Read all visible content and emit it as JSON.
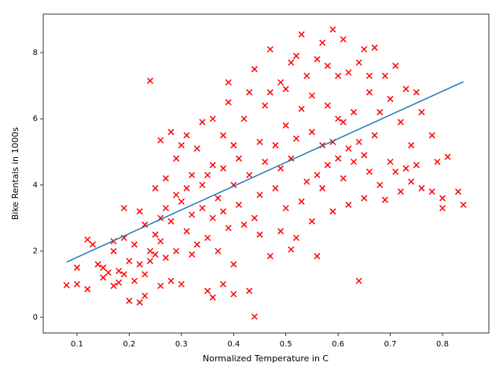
{
  "chart_data": {
    "type": "scatter",
    "xlabel": "Normalized Temperature in C",
    "ylabel": "Bike Rentals in 1000s",
    "xlim": [
      0.0353,
      0.8888
    ],
    "ylim": [
      -0.475,
      9.163
    ],
    "xticks": [
      0.1,
      0.2,
      0.3,
      0.4,
      0.5,
      0.6,
      0.7,
      0.8
    ],
    "yticks": [
      0,
      2,
      4,
      6,
      8
    ],
    "grid": false,
    "series": [
      {
        "type": "scatter",
        "marker": "x",
        "color": "#ff0000",
        "x": [
          0.08,
          0.1,
          0.1,
          0.12,
          0.12,
          0.13,
          0.14,
          0.15,
          0.15,
          0.16,
          0.17,
          0.17,
          0.17,
          0.18,
          0.18,
          0.19,
          0.19,
          0.19,
          0.2,
          0.2,
          0.21,
          0.21,
          0.22,
          0.22,
          0.22,
          0.23,
          0.23,
          0.23,
          0.24,
          0.24,
          0.24,
          0.25,
          0.25,
          0.25,
          0.26,
          0.26,
          0.26,
          0.26,
          0.27,
          0.27,
          0.27,
          0.28,
          0.28,
          0.28,
          0.29,
          0.29,
          0.29,
          0.3,
          0.3,
          0.3,
          0.31,
          0.31,
          0.31,
          0.32,
          0.32,
          0.32,
          0.33,
          0.33,
          0.34,
          0.34,
          0.34,
          0.35,
          0.35,
          0.35,
          0.36,
          0.36,
          0.36,
          0.36,
          0.37,
          0.37,
          0.38,
          0.38,
          0.38,
          0.38,
          0.39,
          0.39,
          0.39,
          0.4,
          0.4,
          0.4,
          0.4,
          0.41,
          0.41,
          0.42,
          0.42,
          0.43,
          0.43,
          0.43,
          0.44,
          0.44,
          0.44,
          0.45,
          0.45,
          0.45,
          0.46,
          0.46,
          0.47,
          0.47,
          0.47,
          0.48,
          0.48,
          0.49,
          0.49,
          0.49,
          0.5,
          0.5,
          0.5,
          0.51,
          0.51,
          0.51,
          0.52,
          0.52,
          0.52,
          0.53,
          0.53,
          0.53,
          0.54,
          0.54,
          0.55,
          0.55,
          0.55,
          0.56,
          0.56,
          0.56,
          0.57,
          0.57,
          0.57,
          0.58,
          0.58,
          0.58,
          0.59,
          0.59,
          0.59,
          0.6,
          0.6,
          0.6,
          0.61,
          0.61,
          0.61,
          0.62,
          0.62,
          0.62,
          0.63,
          0.63,
          0.64,
          0.64,
          0.64,
          0.65,
          0.65,
          0.65,
          0.66,
          0.66,
          0.66,
          0.67,
          0.67,
          0.68,
          0.68,
          0.69,
          0.69,
          0.7,
          0.7,
          0.71,
          0.71,
          0.72,
          0.72,
          0.73,
          0.73,
          0.74,
          0.74,
          0.75,
          0.75,
          0.76,
          0.76,
          0.78,
          0.78,
          0.79,
          0.8,
          0.8,
          0.81,
          0.83,
          0.84
        ],
        "values": [
          0.97,
          1.0,
          1.5,
          0.85,
          2.35,
          2.2,
          1.6,
          1.2,
          1.5,
          1.35,
          0.95,
          2.0,
          2.3,
          1.4,
          1.05,
          3.3,
          1.3,
          2.4,
          1.7,
          0.5,
          1.1,
          2.2,
          0.45,
          3.2,
          1.6,
          2.8,
          0.65,
          1.3,
          7.15,
          2.0,
          1.7,
          3.9,
          2.5,
          1.9,
          5.35,
          3.0,
          2.3,
          0.95,
          3.3,
          1.8,
          4.2,
          5.6,
          2.9,
          1.1,
          4.8,
          3.7,
          2.0,
          5.2,
          3.5,
          1.0,
          5.5,
          3.9,
          2.6,
          4.3,
          1.9,
          3.1,
          5.1,
          2.2,
          4.0,
          3.3,
          5.9,
          4.3,
          2.4,
          0.8,
          6.0,
          4.6,
          3.0,
          0.6,
          3.6,
          2.0,
          5.5,
          4.5,
          3.2,
          1.0,
          6.5,
          2.7,
          7.1,
          4.0,
          5.2,
          1.6,
          0.7,
          3.4,
          4.8,
          2.8,
          6.0,
          6.8,
          4.3,
          0.8,
          7.5,
          3.0,
          0.02,
          5.3,
          2.5,
          3.7,
          6.4,
          4.7,
          1.85,
          6.8,
          8.1,
          5.2,
          3.9,
          4.5,
          7.1,
          2.6,
          5.8,
          3.3,
          6.9,
          7.7,
          4.8,
          2.05,
          5.4,
          2.4,
          7.9,
          8.55,
          6.3,
          3.5,
          4.1,
          7.3,
          5.6,
          2.9,
          6.7,
          7.8,
          4.3,
          1.85,
          8.3,
          5.2,
          3.9,
          6.4,
          7.6,
          4.6,
          8.7,
          5.3,
          3.2,
          7.3,
          4.8,
          6.0,
          8.4,
          5.9,
          4.2,
          7.4,
          3.4,
          5.1,
          6.2,
          4.7,
          7.7,
          1.1,
          5.3,
          8.1,
          3.6,
          4.9,
          6.8,
          7.3,
          4.4,
          5.5,
          8.15,
          4.0,
          6.2,
          3.55,
          7.3,
          4.7,
          6.6,
          7.6,
          4.4,
          3.8,
          5.9,
          4.5,
          6.9,
          5.2,
          4.1,
          6.8,
          4.6,
          3.9,
          6.2,
          5.5,
          3.8,
          4.7,
          3.3,
          3.6,
          4.85,
          3.8,
          3.4
        ]
      },
      {
        "type": "line",
        "color": "#1f77b4",
        "x": [
          0.08,
          0.84
        ],
        "values": [
          1.67,
          7.12
        ]
      }
    ]
  }
}
